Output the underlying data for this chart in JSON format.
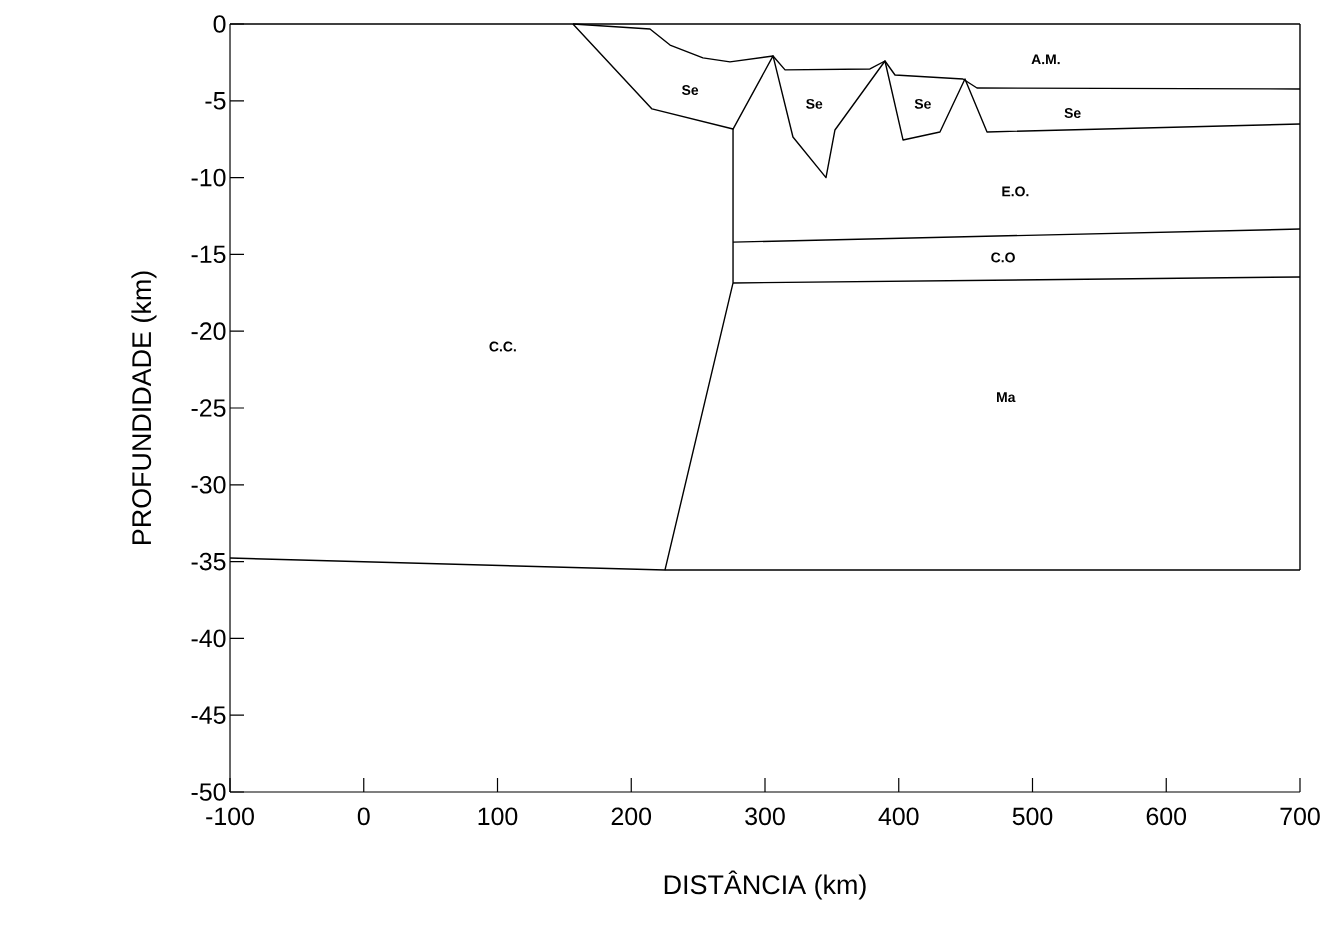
{
  "chart_data": {
    "type": "line",
    "xlabel": "DISTÂNCIA (km)",
    "ylabel": "PROFUNDIDADE (km)",
    "xlim": [
      -100,
      700
    ],
    "ylim": [
      -50,
      0
    ],
    "xticks": [
      -100,
      0,
      100,
      200,
      300,
      400,
      500,
      600,
      700
    ],
    "yticks": [
      -50,
      -45,
      -40,
      -35,
      -30,
      -25,
      -20,
      -15,
      -10,
      -5,
      0
    ],
    "marker": "none",
    "line_style": "solid",
    "series": [
      {
        "color": "#000000",
        "x": [
          -100,
          700
        ],
        "values": [
          0,
          0
        ]
      },
      {
        "color": "#000000",
        "x": [
          700,
          700
        ],
        "values": [
          0,
          -35.55
        ]
      },
      {
        "color": "#000000",
        "x": [
          156.4,
          214.0,
          229.0,
          253.6,
          273.8,
          306.0,
          315.0,
          378.5,
          389.7,
          397.2,
          448.0,
          458.5,
          700
        ],
        "values": [
          0,
          -0.33,
          -1.37,
          -2.21,
          -2.47,
          -2.08,
          -2.99,
          -2.93,
          -2.41,
          -3.32,
          -3.58,
          -4.17,
          -4.23
        ]
      },
      {
        "color": "#000000",
        "x": [
          156.4,
          215.5,
          276.1,
          306.0,
          320.9,
          345.6,
          352.3,
          389.7,
          403.2,
          430.8,
          449.5,
          466.0,
          700
        ],
        "values": [
          0,
          -5.53,
          -6.84,
          -2.08,
          -7.36,
          -10.0,
          -6.9,
          -2.41,
          -7.55,
          -7.03,
          -3.58,
          -7.03,
          -6.51
        ]
      },
      {
        "color": "#000000",
        "x": [
          276.1,
          276.1,
          225.2
        ],
        "values": [
          -6.84,
          -16.86,
          -35.55
        ]
      },
      {
        "color": "#000000",
        "x": [
          276.1,
          700
        ],
        "values": [
          -14.2,
          -13.35
        ]
      },
      {
        "color": "#000000",
        "x": [
          276.1,
          700
        ],
        "values": [
          -16.86,
          -16.47
        ]
      },
      {
        "color": "#000000",
        "x": [
          -100,
          225.2,
          700
        ],
        "values": [
          -34.77,
          -35.55,
          -35.55
        ]
      }
    ],
    "annotations": [
      "A.M.",
      "Se",
      "Se",
      "Se",
      "Se",
      "E.O.",
      "C.O",
      "C.C.",
      "Ma"
    ]
  }
}
